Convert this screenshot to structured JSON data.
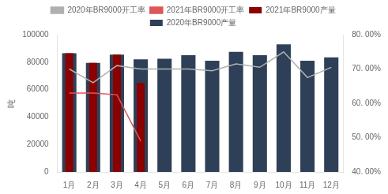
{
  "chart_data": {
    "type": "bar",
    "categories": [
      "1月",
      "2月",
      "3月",
      "4月",
      "5月",
      "6月",
      "7月",
      "8月",
      "9月",
      "10月",
      "11月",
      "12月"
    ],
    "series": [
      {
        "name": "2020年BR9000产量",
        "type": "bar",
        "color": "#2e4057",
        "values": [
          86500,
          79500,
          85500,
          82000,
          82500,
          85000,
          81000,
          87500,
          85000,
          93000,
          81000,
          83500
        ]
      },
      {
        "name": "2021年BR9000产量",
        "type": "bar",
        "color": "#8b0000",
        "values": [
          86500,
          79500,
          85500,
          65000,
          null,
          null,
          null,
          null,
          null,
          null,
          null,
          null
        ]
      },
      {
        "name": "2020年BR9000开工率",
        "type": "line",
        "axis": "y2",
        "color": "#b0b0b0",
        "values": [
          0.7,
          0.66,
          0.71,
          0.7,
          0.7,
          0.7,
          0.695,
          0.715,
          0.705,
          0.75,
          0.675,
          0.705
        ]
      },
      {
        "name": "2021年BR9000开工率",
        "type": "line",
        "axis": "y2",
        "color": "#e05555",
        "values": [
          0.63,
          0.63,
          0.625,
          0.49,
          null,
          null,
          null,
          null,
          null,
          null,
          null,
          null
        ]
      }
    ],
    "ylabel": "吨",
    "ylim": [
      0,
      100000
    ],
    "yticks": [
      0,
      20000,
      40000,
      60000,
      80000,
      100000
    ],
    "y2lim": [
      0.4,
      0.8
    ],
    "y2ticks": [
      {
        "value": 0.4,
        "label": "40. 00%"
      },
      {
        "value": 0.5,
        "label": "50. 00%"
      },
      {
        "value": 0.6,
        "label": "60. 00%"
      },
      {
        "value": 0.7,
        "label": "70. 00%"
      },
      {
        "value": 0.8,
        "label": "80. 00%"
      }
    ],
    "grid": false,
    "legend": "top"
  }
}
